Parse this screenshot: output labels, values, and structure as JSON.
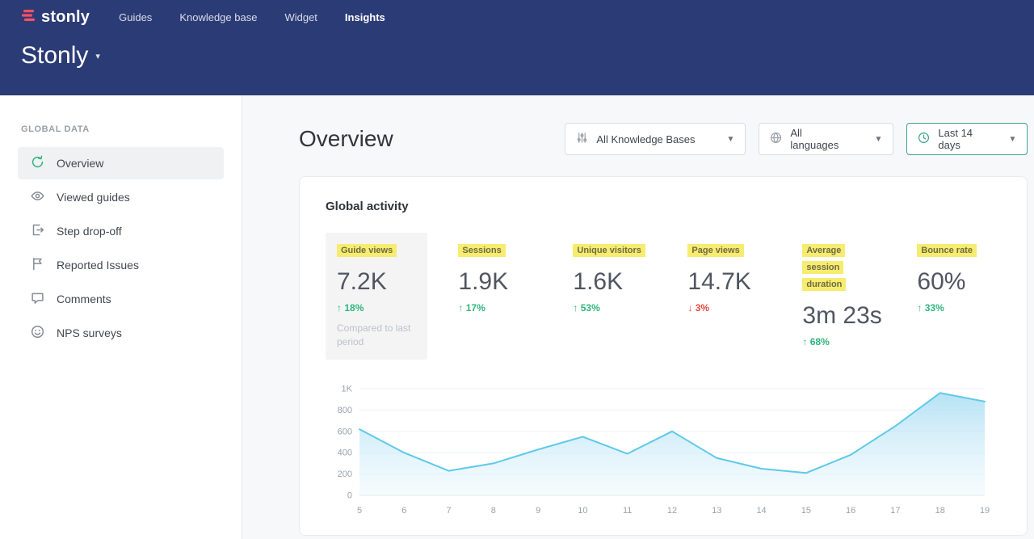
{
  "colors": {
    "header_bg": "#2b3b76",
    "accent_green": "#2fb57c",
    "negative_red": "#e4483b",
    "highlight_yellow": "#f7ec6f",
    "chart_line": "#5fc9e9",
    "days_filter_border": "#3fa08b"
  },
  "topnav": {
    "logo_text": "stonly",
    "items": [
      {
        "label": "Guides"
      },
      {
        "label": "Knowledge base"
      },
      {
        "label": "Widget"
      },
      {
        "label": "Insights",
        "active": true
      }
    ],
    "workspace_title": "Stonly"
  },
  "sidebar": {
    "section_label": "GLOBAL DATA",
    "items": [
      {
        "label": "Overview",
        "active": true
      },
      {
        "label": "Viewed guides"
      },
      {
        "label": "Step drop-off"
      },
      {
        "label": "Reported Issues"
      },
      {
        "label": "Comments"
      },
      {
        "label": "NPS surveys"
      }
    ]
  },
  "main": {
    "page_title": "Overview",
    "filters": [
      {
        "value": "All Knowledge Bases"
      },
      {
        "value": "All languages"
      },
      {
        "value": "Last 14 days"
      }
    ],
    "card_title": "Global activity",
    "metrics": [
      {
        "label": "Guide views",
        "value": "7.2K",
        "arrow": "↑",
        "delta": "18%",
        "direction": "up",
        "note": "Compared to last period"
      },
      {
        "label": "Sessions",
        "value": "1.9K",
        "arrow": "↑",
        "delta": "17%",
        "direction": "up"
      },
      {
        "label": "Unique visitors",
        "value": "1.6K",
        "arrow": "↑",
        "delta": "53%",
        "direction": "up"
      },
      {
        "label": "Page views",
        "value": "14.7K",
        "arrow": "↓",
        "delta": "3%",
        "direction": "down"
      },
      {
        "label": "Average session duration",
        "value": "3m 23s",
        "arrow": "↑",
        "delta": "68%",
        "direction": "up"
      },
      {
        "label": "Bounce rate",
        "value": "60%",
        "arrow": "↑",
        "delta": "33%",
        "direction": "up"
      }
    ]
  },
  "chart_data": {
    "type": "area",
    "title": "Global activity",
    "categories": [
      "5",
      "6",
      "7",
      "8",
      "9",
      "10",
      "11",
      "12",
      "13",
      "14",
      "15",
      "16",
      "17",
      "18",
      "19"
    ],
    "values": [
      620,
      400,
      230,
      300,
      430,
      550,
      390,
      600,
      350,
      250,
      210,
      380,
      650,
      960,
      880
    ],
    "xlabel": "",
    "ylabel": "",
    "ylim": [
      0,
      1000
    ],
    "ytick_values": [
      0,
      200,
      400,
      600,
      800,
      1000
    ],
    "ytick_labels": [
      "0",
      "200",
      "400",
      "600",
      "800",
      "1K"
    ],
    "grid": true,
    "legend": "none",
    "line_color": "#5fc9e9"
  }
}
